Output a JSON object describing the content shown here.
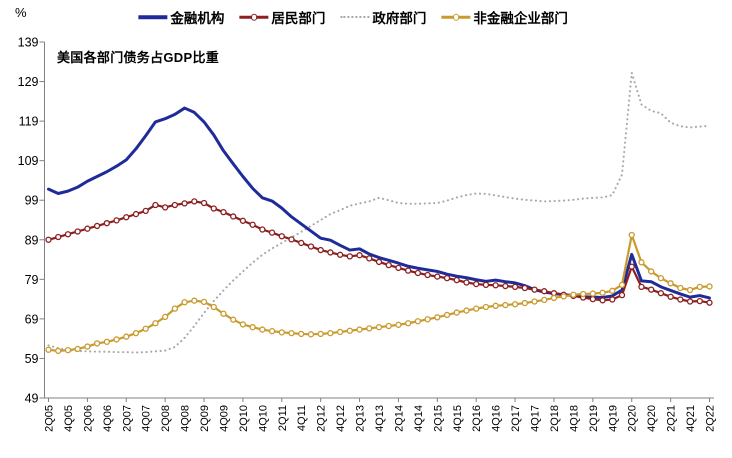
{
  "chart_data": {
    "type": "line",
    "title": "美国各部门债务占GDP比重",
    "unit": "%",
    "grid": false,
    "legend_position": "top",
    "axis_color": "#808080",
    "text_color": "#000000",
    "ylim": [
      49,
      139
    ],
    "y_ticks": [
      49,
      59,
      69,
      79,
      89,
      99,
      109,
      119,
      129,
      139
    ],
    "x": [
      "2Q05",
      "3Q05",
      "4Q05",
      "1Q06",
      "2Q06",
      "3Q06",
      "4Q06",
      "1Q07",
      "2Q07",
      "3Q07",
      "4Q07",
      "1Q08",
      "2Q08",
      "3Q08",
      "4Q08",
      "1Q09",
      "2Q09",
      "3Q09",
      "4Q09",
      "1Q10",
      "2Q10",
      "3Q10",
      "4Q10",
      "1Q11",
      "2Q11",
      "3Q11",
      "4Q11",
      "1Q12",
      "2Q12",
      "3Q12",
      "4Q12",
      "1Q13",
      "2Q13",
      "3Q13",
      "4Q13",
      "1Q14",
      "2Q14",
      "3Q14",
      "4Q14",
      "1Q15",
      "2Q15",
      "3Q15",
      "4Q15",
      "1Q16",
      "2Q16",
      "3Q16",
      "4Q16",
      "1Q17",
      "2Q17",
      "3Q17",
      "4Q17",
      "1Q18",
      "2Q18",
      "3Q18",
      "4Q18",
      "1Q19",
      "2Q19",
      "3Q19",
      "4Q19",
      "1Q20",
      "2Q20",
      "3Q20",
      "4Q20",
      "1Q21",
      "2Q21",
      "3Q21",
      "4Q21",
      "1Q22",
      "2Q22"
    ],
    "x_tick_labels": [
      "2Q05",
      "4Q05",
      "2Q06",
      "4Q06",
      "2Q07",
      "4Q07",
      "2Q08",
      "4Q08",
      "2Q09",
      "4Q09",
      "2Q10",
      "4Q10",
      "2Q11",
      "4Q11",
      "2Q12",
      "4Q12",
      "2Q13",
      "4Q13",
      "2Q14",
      "4Q14",
      "2Q15",
      "4Q15",
      "2Q16",
      "4Q16",
      "2Q17",
      "4Q17",
      "2Q18",
      "4Q18",
      "2Q19",
      "4Q19",
      "2Q20",
      "4Q20",
      "2Q21",
      "4Q21",
      "2Q22"
    ],
    "series": [
      {
        "id": "financial",
        "name": "金融机构",
        "color": "#1F2B99",
        "style": "solid",
        "width": 3,
        "marker": "none",
        "values": [
          101.8,
          100.7,
          101.3,
          102.3,
          103.8,
          105.0,
          106.2,
          107.6,
          109.2,
          112.0,
          115.3,
          118.8,
          119.6,
          120.7,
          122.3,
          121.2,
          118.8,
          115.5,
          111.5,
          108.2,
          105.0,
          102.0,
          99.6,
          98.8,
          97.0,
          94.8,
          93.0,
          91.2,
          89.4,
          88.9,
          87.6,
          86.4,
          86.7,
          85.4,
          84.5,
          83.8,
          83.1,
          82.3,
          81.8,
          81.4,
          81.0,
          80.3,
          79.8,
          79.4,
          78.9,
          78.5,
          78.8,
          78.4,
          78.1,
          77.4,
          76.4,
          75.8,
          75.4,
          75.1,
          74.9,
          74.6,
          74.5,
          74.4,
          74.8,
          76.3,
          85.3,
          78.6,
          78.4,
          77.1,
          76.2,
          75.3,
          74.5,
          74.9,
          74.3
        ]
      },
      {
        "id": "household",
        "name": "居民部门",
        "color": "#8C1F1F",
        "style": "solid",
        "width": 2.2,
        "marker": "circle-open",
        "values": [
          89.0,
          89.7,
          90.4,
          91.1,
          91.8,
          92.5,
          93.2,
          93.9,
          94.7,
          95.5,
          96.3,
          97.8,
          97.2,
          97.8,
          98.2,
          98.7,
          98.3,
          96.9,
          96.0,
          94.9,
          93.8,
          92.8,
          91.6,
          90.8,
          89.9,
          89.1,
          88.2,
          87.3,
          86.4,
          85.8,
          85.2,
          84.8,
          85.1,
          84.3,
          83.4,
          82.6,
          81.9,
          81.2,
          80.6,
          80.1,
          79.7,
          79.3,
          78.8,
          78.2,
          77.8,
          77.6,
          77.5,
          77.3,
          77.1,
          76.8,
          76.4,
          76.0,
          75.5,
          75.1,
          74.8,
          74.4,
          74.0,
          73.7,
          73.9,
          75.0,
          82.2,
          77.1,
          76.4,
          75.5,
          74.6,
          73.9,
          73.4,
          73.5,
          73.1
        ]
      },
      {
        "id": "government",
        "name": "政府部门",
        "color": "#A8A8A8",
        "style": "dotted",
        "width": 2.1,
        "marker": "none",
        "values": [
          62.3,
          61.6,
          61.1,
          60.9,
          60.8,
          60.7,
          60.7,
          60.6,
          60.6,
          60.5,
          60.6,
          60.8,
          61.0,
          61.9,
          64.2,
          67.2,
          70.5,
          73.5,
          76.2,
          78.7,
          81.0,
          83.2,
          85.2,
          86.8,
          88.2,
          89.6,
          91.0,
          92.5,
          94.0,
          95.5,
          96.5,
          97.6,
          98.2,
          98.7,
          99.6,
          99.0,
          98.3,
          98.1,
          98.1,
          98.2,
          98.3,
          98.9,
          99.7,
          100.3,
          100.7,
          100.6,
          100.2,
          99.8,
          99.4,
          99.1,
          98.9,
          98.7,
          98.8,
          98.9,
          99.1,
          99.4,
          99.6,
          99.7,
          100.3,
          105.5,
          131.2,
          123.2,
          121.6,
          121.0,
          118.6,
          117.7,
          117.4,
          117.6,
          117.8
        ]
      },
      {
        "id": "nonfinancial-corporate",
        "name": "非金融企业部门",
        "color": "#C99A2E",
        "style": "solid",
        "width": 2.2,
        "marker": "circle-open",
        "values": [
          61.2,
          60.9,
          61.1,
          61.4,
          62.0,
          62.8,
          63.2,
          63.8,
          64.5,
          65.4,
          66.5,
          67.9,
          69.5,
          71.6,
          73.2,
          73.6,
          73.3,
          72.0,
          70.3,
          68.8,
          67.6,
          66.9,
          66.3,
          65.9,
          65.6,
          65.4,
          65.2,
          65.1,
          65.2,
          65.4,
          65.7,
          66.0,
          66.3,
          66.6,
          66.9,
          67.2,
          67.5,
          67.9,
          68.4,
          68.9,
          69.4,
          70.0,
          70.6,
          71.1,
          71.6,
          72.0,
          72.3,
          72.5,
          72.7,
          73.0,
          73.4,
          73.8,
          74.3,
          74.7,
          75.1,
          75.3,
          75.4,
          75.6,
          76.1,
          77.6,
          90.2,
          83.3,
          81.0,
          79.3,
          78.0,
          76.8,
          76.3,
          77.1,
          77.2
        ]
      }
    ]
  }
}
